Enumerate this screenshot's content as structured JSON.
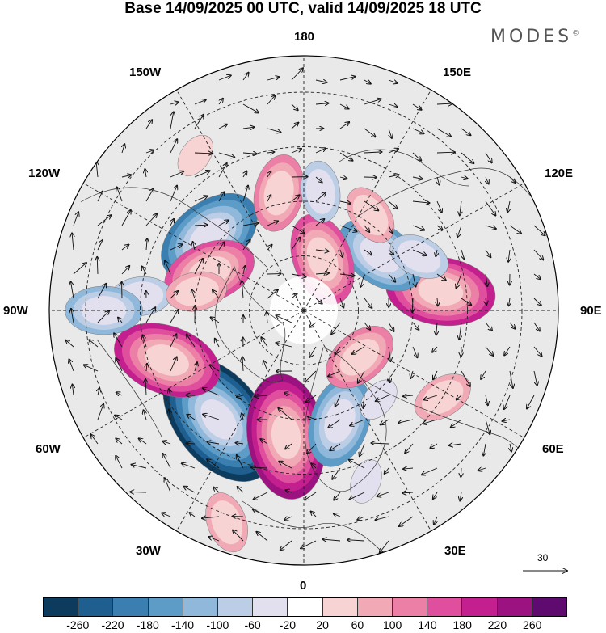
{
  "title": "Base 14/09/2025 00 UTC, valid 14/09/2025 18 UTC",
  "brand": "MODES",
  "brand_mark": "©",
  "longitude_labels": {
    "n180": "180",
    "w150": "150W",
    "e150": "150E",
    "w120": "120W",
    "e120": "120E",
    "w90": "90W",
    "e90": "90E",
    "w60": "60W",
    "e60": "60E",
    "w30": "30W",
    "e30": "30E",
    "s0": "0"
  },
  "vector_scale": "30",
  "colorbar": {
    "colors": [
      "#0d3b5e",
      "#1f5f8f",
      "#3b7fb0",
      "#5e9cc8",
      "#8fb8da",
      "#bccde6",
      "#e2e0ef",
      "#ffffff",
      "#f7d3d3",
      "#f2a9b6",
      "#ec7fa5",
      "#e04f9e",
      "#c41f8e",
      "#9c1280",
      "#5e0a6e"
    ],
    "labels": [
      "-260",
      "-220",
      "-180",
      "-140",
      "-100",
      "-60",
      "-20",
      "20",
      "60",
      "100",
      "140",
      "180",
      "220",
      "260"
    ]
  },
  "anomaly_centers": [
    {
      "lon": -38,
      "lat": 52,
      "value": -260
    },
    {
      "lon": -8,
      "lat": 55,
      "value": 250
    },
    {
      "lon": 18,
      "lat": 58,
      "value": -170
    },
    {
      "lon": -70,
      "lat": 50,
      "value": 190
    },
    {
      "lon": -128,
      "lat": 57,
      "value": -190
    },
    {
      "lon": -112,
      "lat": 62,
      "value": 170
    },
    {
      "lon": 98,
      "lat": 52,
      "value": 180
    },
    {
      "lon": 126,
      "lat": 64,
      "value": -150
    },
    {
      "lon": 160,
      "lat": 75,
      "value": 140
    },
    {
      "lon": -168,
      "lat": 57,
      "value": 130
    },
    {
      "lon": 172,
      "lat": 57,
      "value": -70
    },
    {
      "lon": 145,
      "lat": 58,
      "value": 80
    },
    {
      "lon": 115,
      "lat": 55,
      "value": -60
    },
    {
      "lon": -95,
      "lat": 45,
      "value": -70
    },
    {
      "lon": -90,
      "lat": 35,
      "value": -100
    },
    {
      "lon": 50,
      "lat": 70,
      "value": 110
    },
    {
      "lon": 58,
      "lat": 45,
      "value": 60
    },
    {
      "lon": -20,
      "lat": 28,
      "value": 60
    },
    {
      "lon": -145,
      "lat": 38,
      "value": 50
    },
    {
      "lon": -100,
      "lat": 60,
      "value": 70
    },
    {
      "lon": 20,
      "lat": 40,
      "value": -30
    },
    {
      "lon": 40,
      "lat": 58,
      "value": -40
    }
  ]
}
